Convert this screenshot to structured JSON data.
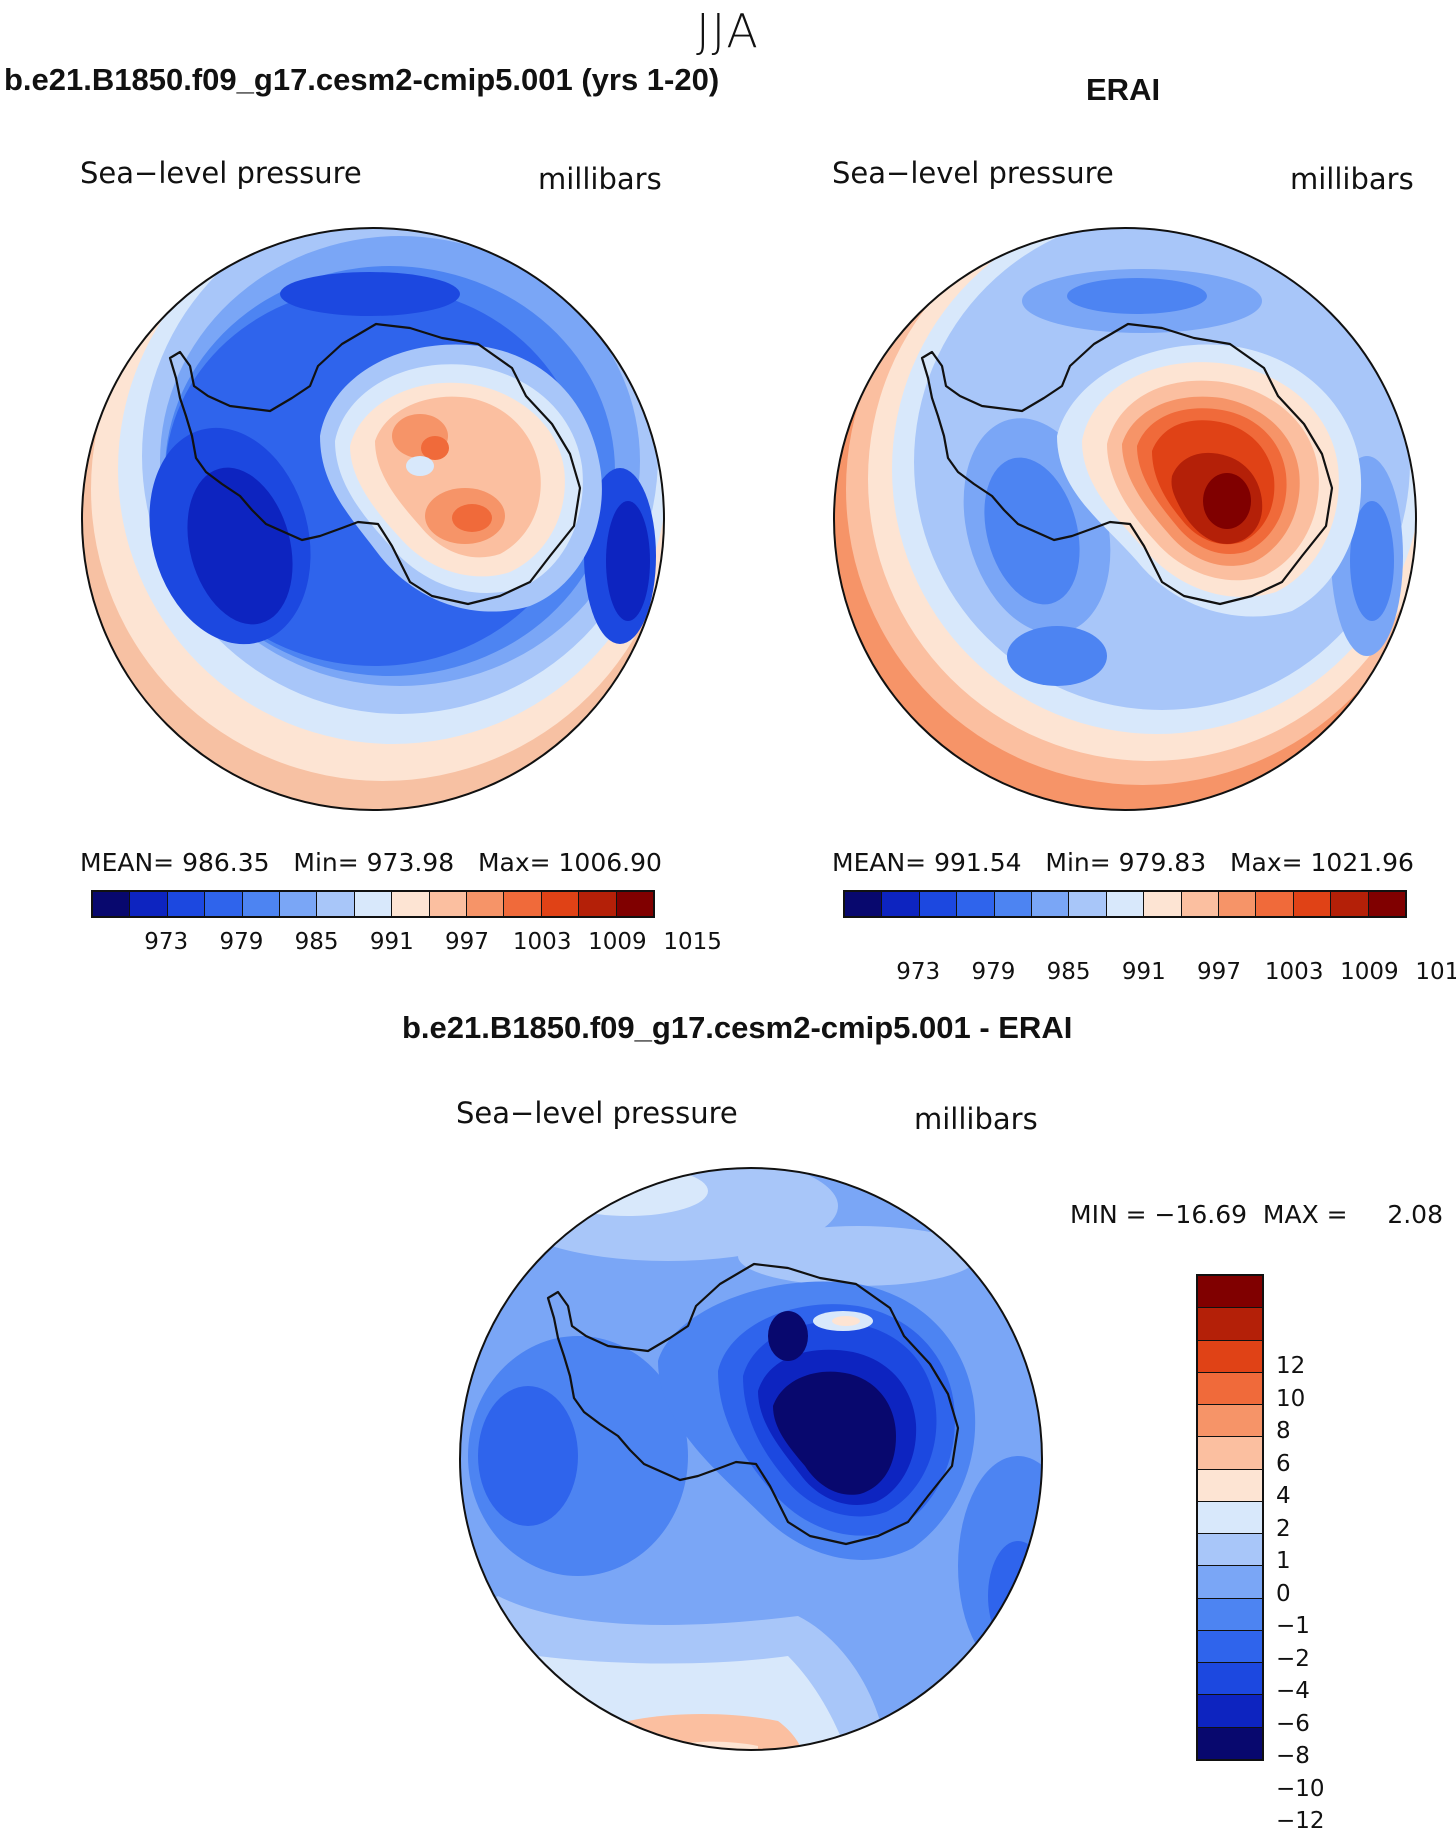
{
  "season": "JJA",
  "panels": {
    "model": {
      "title": "b.e21.B1850.f09_g17.cesm2-cmip5.001 (yrs 1-20)",
      "variable": "Sea−level pressure",
      "units": "millibars",
      "stats": "MEAN= 986.35   Min= 973.98   Max= 1006.90"
    },
    "obs": {
      "title": "ERAI",
      "variable": "Sea−level pressure",
      "units": "millibars",
      "stats": "MEAN= 991.54   Min= 979.83   Max= 1021.96"
    },
    "diff": {
      "title": "b.e21.B1850.f09_g17.cesm2-cmip5.001 - ERAI",
      "variable": "Sea−level pressure",
      "units": "millibars",
      "stats": "MIN = −16.69  MAX =     2.08"
    }
  },
  "colorbars": {
    "abs": {
      "colors": [
        "#08086e",
        "#0d24c0",
        "#1c48e0",
        "#2f64ec",
        "#4d84f2",
        "#7aa6f6",
        "#a8c6f9",
        "#d8e8fb",
        "#fde4d3",
        "#fbbfa0",
        "#f69468",
        "#f06a3a",
        "#e04216",
        "#b42008",
        "#800000"
      ],
      "tick_labels": [
        "973",
        "979",
        "985",
        "991",
        "997",
        "1003",
        "1009",
        "1015"
      ]
    },
    "diff": {
      "colors": [
        "#800000",
        "#b42008",
        "#e04216",
        "#f06a3a",
        "#f69468",
        "#fbbfa0",
        "#fde4d3",
        "#d8e8fb",
        "#a8c6f9",
        "#7aa6f6",
        "#4d84f2",
        "#2f64ec",
        "#1c48e0",
        "#0d24c0",
        "#08086e"
      ],
      "tick_labels": [
        "12",
        "10",
        "8",
        "6",
        "4",
        "2",
        "1",
        "0",
        "−1",
        "−2",
        "−4",
        "−6",
        "−8",
        "−10",
        "−12"
      ]
    }
  },
  "chart_data": [
    {
      "type": "heatmap",
      "title": "b.e21.B1850.f09_g17.cesm2-cmip5.001 (yrs 1-20)",
      "variable": "Sea-level pressure",
      "units": "millibars",
      "projection": "south polar stereographic",
      "mean": 986.35,
      "min": 973.98,
      "max": 1006.9,
      "contour_levels": [
        970,
        973,
        976,
        979,
        982,
        985,
        988,
        991,
        994,
        997,
        1000,
        1003,
        1006,
        1009,
        1012,
        1015
      ]
    },
    {
      "type": "heatmap",
      "title": "ERAI",
      "variable": "Sea-level pressure",
      "units": "millibars",
      "projection": "south polar stereographic",
      "mean": 991.54,
      "min": 979.83,
      "max": 1021.96,
      "contour_levels": [
        970,
        973,
        976,
        979,
        982,
        985,
        988,
        991,
        994,
        997,
        1000,
        1003,
        1006,
        1009,
        1012,
        1015
      ]
    },
    {
      "type": "heatmap",
      "title": "b.e21.B1850.f09_g17.cesm2-cmip5.001 - ERAI",
      "variable": "Sea-level pressure",
      "units": "millibars",
      "projection": "south polar stereographic",
      "min": -16.69,
      "max": 2.08,
      "contour_levels": [
        -12,
        -10,
        -8,
        -6,
        -4,
        -2,
        -1,
        0,
        1,
        2,
        4,
        6,
        8,
        10,
        12
      ]
    }
  ]
}
